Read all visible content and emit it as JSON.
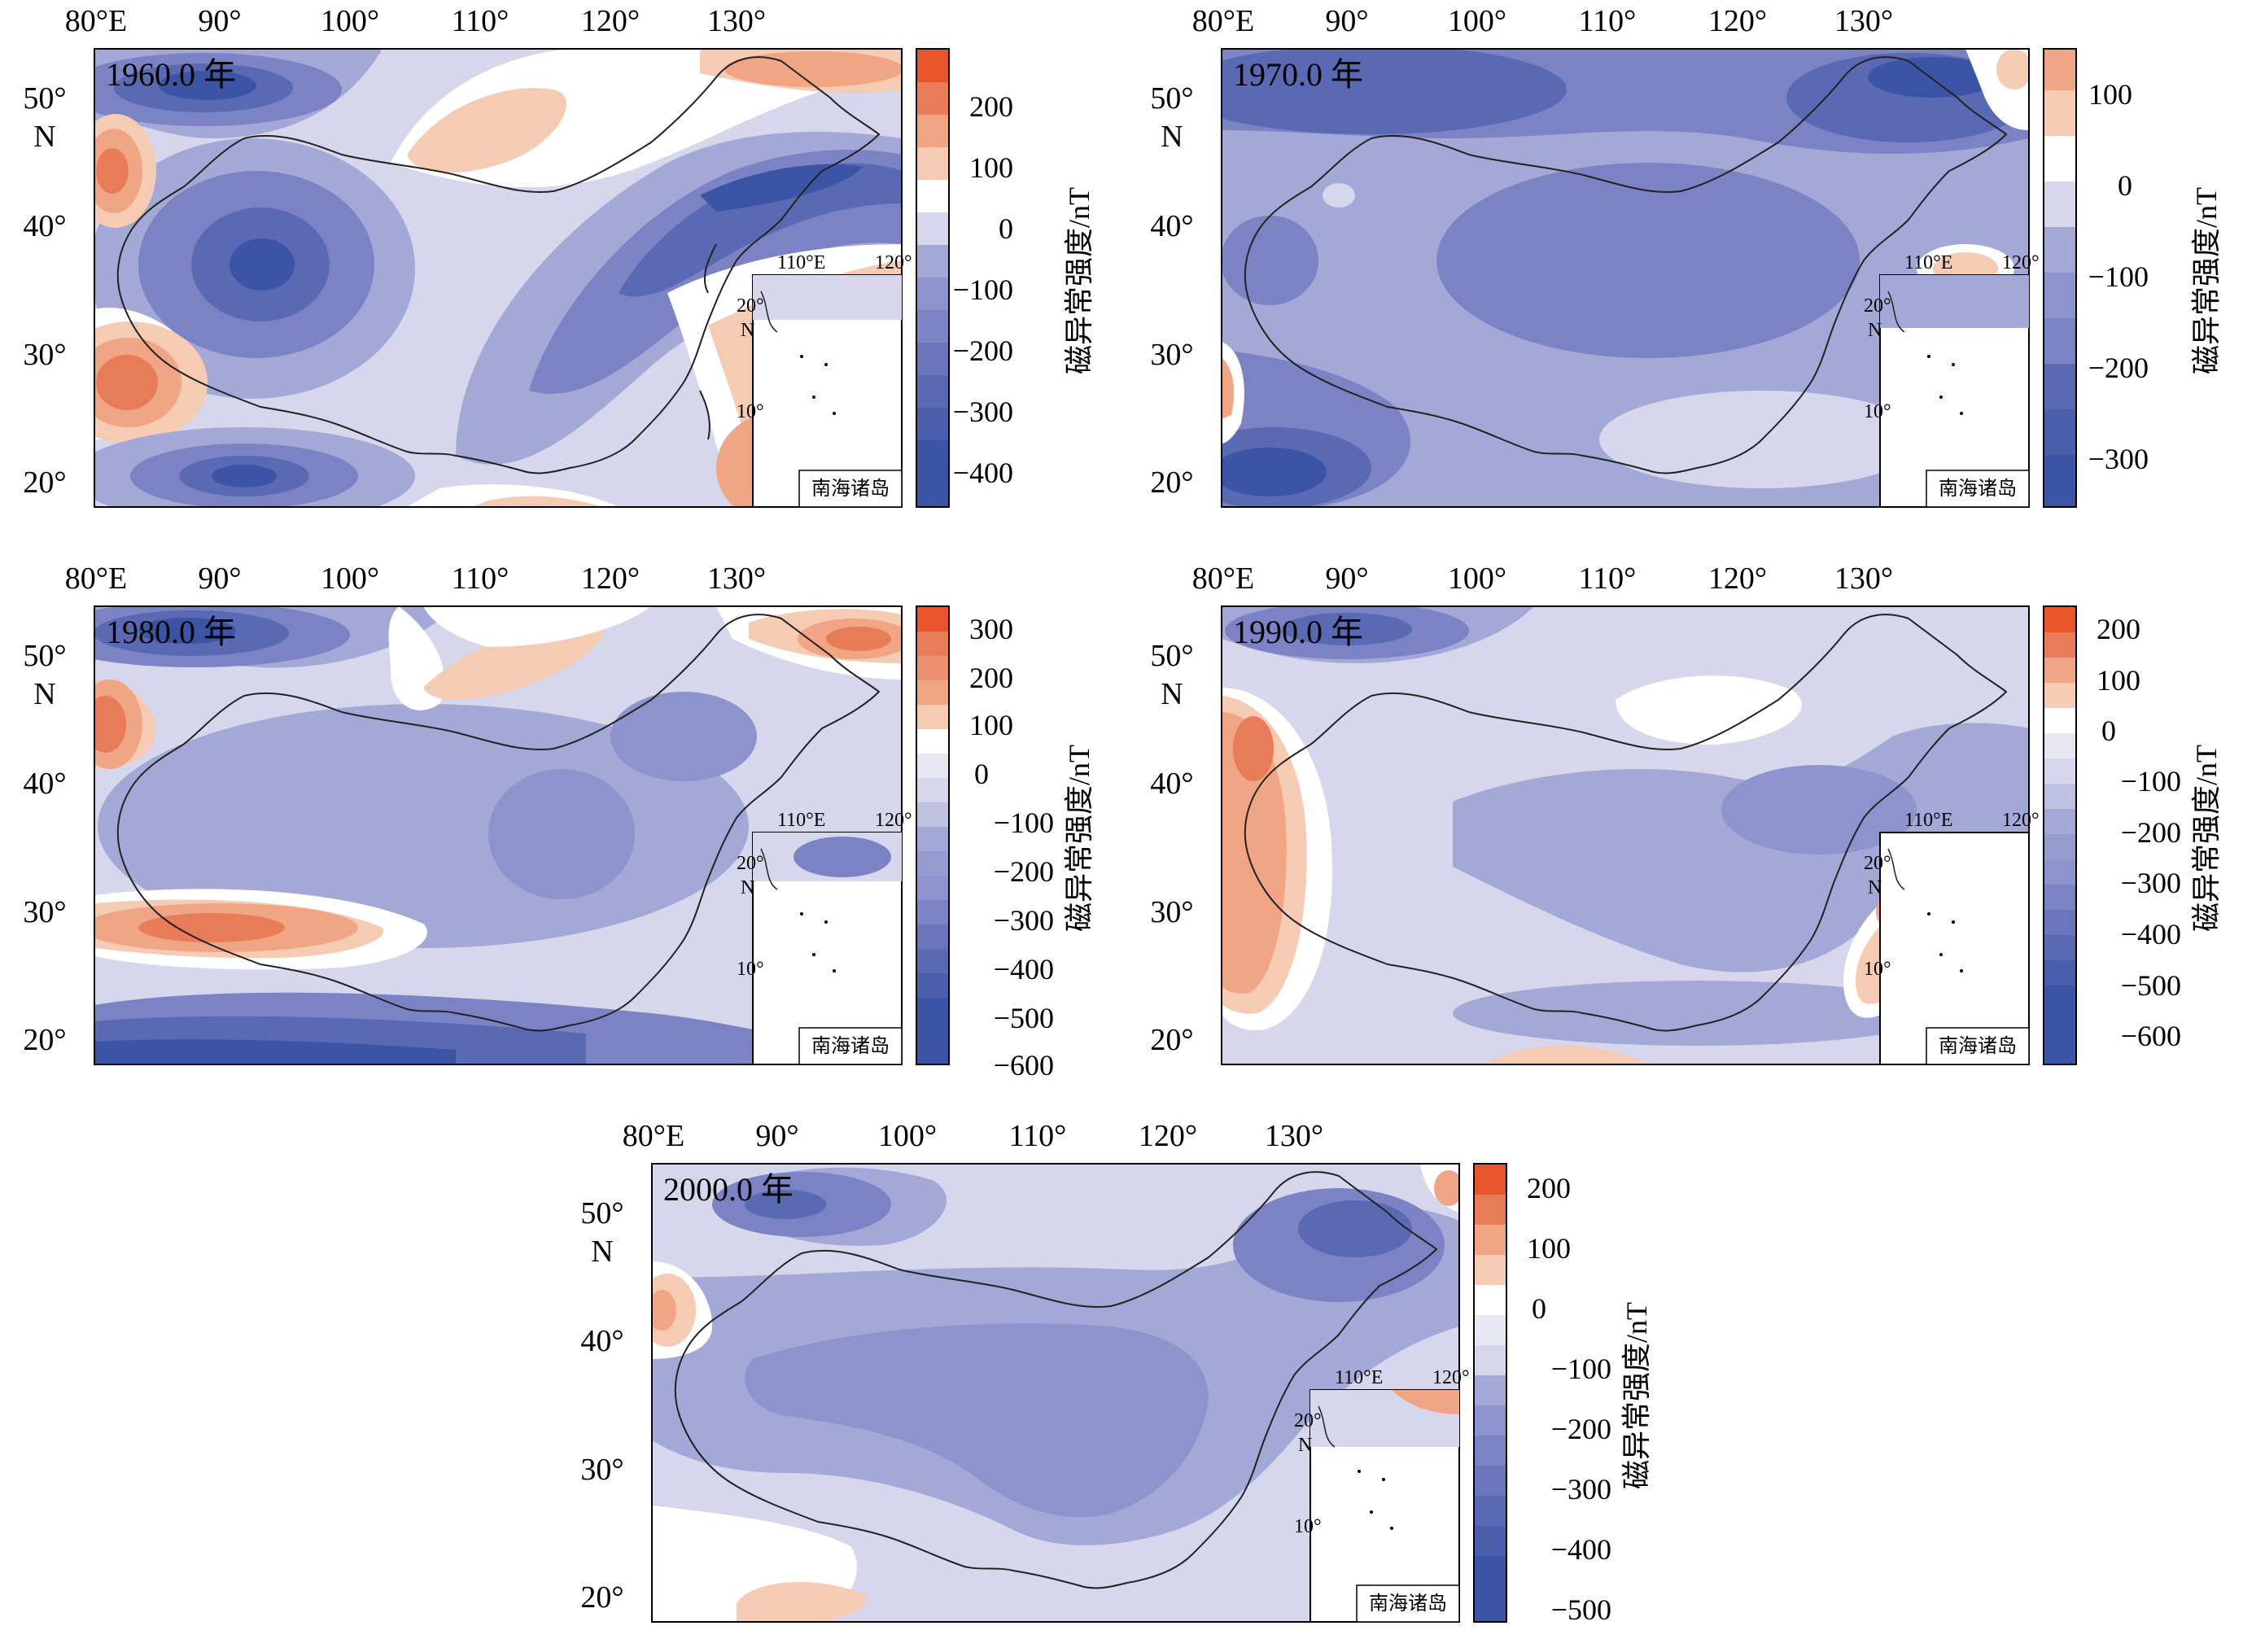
{
  "colors": {
    "deep_blue": "#3c54a6",
    "blue_3": "#5a69b3",
    "blue_2": "#7b83c4",
    "blue_1": "#a4a8d6",
    "pale_blue": "#d6d7ec",
    "white": "#ffffff",
    "pale_orange": "#f6cbb4",
    "orange_1": "#f0a584",
    "orange_2": "#e97c58",
    "deep_orange": "#e8552a",
    "coastline": "#222222"
  },
  "lon_labels": [
    "80°E",
    "90°",
    "100°",
    "110°",
    "120°",
    "130°"
  ],
  "lat_labels": [
    "50°",
    "N",
    "40°",
    "30°",
    "20°"
  ],
  "colorbar_title": "磁异常强度/nT",
  "inset": {
    "lon_labels": [
      "110°E",
      "120°"
    ],
    "lat_labels": [
      "20°",
      "N",
      "10°"
    ],
    "label": "南海诸岛"
  },
  "panels": [
    {
      "year": "1960.0 年",
      "colorbar_ticks": [
        "200",
        "100",
        "0",
        "−100",
        "−200",
        "−300",
        "−400"
      ]
    },
    {
      "year": "1970.0 年",
      "colorbar_ticks": [
        "100",
        "0",
        "−100",
        "−200",
        "−300"
      ]
    },
    {
      "year": "1980.0 年",
      "colorbar_ticks": [
        "300",
        "200",
        "100",
        "0",
        "−100",
        "−200",
        "−300",
        "−400",
        "−500",
        "−600"
      ]
    },
    {
      "year": "1990.0 年",
      "colorbar_ticks": [
        "200",
        "100",
        "0",
        "−100",
        "−200",
        "−300",
        "−400",
        "−500",
        "−600"
      ]
    },
    {
      "year": "2000.0 年",
      "colorbar_ticks": [
        "200",
        "100",
        "0",
        "−100",
        "−200",
        "−300",
        "−400",
        "−500"
      ]
    }
  ]
}
